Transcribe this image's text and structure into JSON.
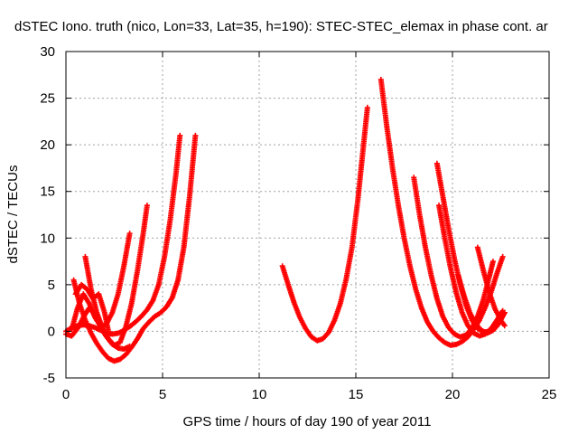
{
  "chart_data": {
    "type": "scatter",
    "title": "dSTEC Iono. truth (nico, Lon=33, Lat=35, h=190): STEC-STEC_elemax in phase cont. ar",
    "xlabel": "GPS time / hours of day 190 of year 2011",
    "ylabel": "dSTEC  / TECUs",
    "xlim": [
      0,
      25
    ],
    "ylim": [
      -5,
      30
    ],
    "xticks": [
      0,
      5,
      10,
      15,
      20,
      25
    ],
    "yticks": [
      -5,
      0,
      5,
      10,
      15,
      20,
      25,
      30
    ],
    "xtick_labels": [
      "0",
      "5",
      "10",
      "15",
      "20",
      "25"
    ],
    "ytick_labels": [
      "-5",
      "0",
      "5",
      "10",
      "15",
      "20",
      "25",
      "30"
    ],
    "grid": true,
    "marker": "plus",
    "color": "#ff0000",
    "series": [
      {
        "x": [
          0.0,
          0.3,
          0.6,
          0.9,
          1.2,
          1.5,
          1.8,
          2.1,
          2.4,
          2.7,
          3.0,
          3.3,
          3.6,
          3.9,
          4.2,
          4.5,
          4.8,
          5.1,
          5.4,
          5.7,
          5.9
        ],
        "y": [
          0.0,
          0.4,
          0.6,
          0.7,
          0.6,
          0.4,
          0.1,
          -0.2,
          -0.3,
          -0.2,
          0.1,
          0.5,
          1.0,
          1.6,
          2.3,
          3.3,
          5.0,
          8.0,
          12.0,
          17.0,
          21.0
        ]
      },
      {
        "x": [
          0.4,
          0.7,
          1.0,
          1.3,
          1.6,
          1.9,
          2.2,
          2.5,
          2.8,
          3.1,
          3.4,
          3.7,
          4.0,
          4.3,
          4.6,
          4.9,
          5.2,
          5.5,
          5.8,
          6.1,
          6.4,
          6.7
        ],
        "y": [
          5.5,
          3.0,
          1.2,
          -0.2,
          -1.3,
          -2.2,
          -2.9,
          -3.2,
          -3.0,
          -2.5,
          -1.7,
          -0.8,
          0.3,
          1.0,
          1.6,
          2.0,
          2.6,
          3.6,
          5.5,
          9.0,
          14.5,
          21.0
        ]
      },
      {
        "x": [
          1.0,
          1.3,
          1.6,
          1.9,
          2.2,
          2.5,
          2.8,
          3.1,
          3.4,
          3.7,
          4.0,
          4.2
        ],
        "y": [
          8.0,
          4.5,
          2.0,
          0.3,
          -0.8,
          -1.5,
          -1.2,
          0.5,
          3.0,
          6.5,
          10.5,
          13.5
        ]
      },
      {
        "x": [
          0.3,
          0.6,
          0.9,
          1.2,
          1.5,
          1.8,
          2.1,
          2.4,
          2.7,
          3.0,
          3.3
        ],
        "y": [
          0.2,
          2.5,
          4.0,
          3.0,
          1.5,
          0.5,
          0.8,
          2.0,
          4.0,
          7.0,
          10.5
        ]
      },
      {
        "x": [
          0.5,
          0.8,
          1.1,
          1.4,
          1.7,
          2.0,
          2.2
        ],
        "y": [
          4.0,
          5.0,
          4.5,
          3.5,
          4.0,
          2.0,
          0.0
        ]
      },
      {
        "x": [
          0.0,
          0.3,
          0.6,
          0.9,
          1.2,
          1.5,
          1.8,
          2.1,
          2.4,
          2.7,
          3.0,
          3.3
        ],
        "y": [
          -0.3,
          -0.5,
          0.3,
          1.5,
          2.5,
          1.8,
          0.4,
          -0.6,
          -1.4,
          -1.8,
          -1.9,
          -1.6
        ]
      },
      {
        "x": [
          11.2,
          11.5,
          11.8,
          12.1,
          12.4,
          12.7,
          13.0,
          13.3,
          13.6,
          13.9,
          14.2,
          14.5,
          14.8,
          15.1,
          15.4,
          15.6
        ],
        "y": [
          7.0,
          5.0,
          3.1,
          1.5,
          0.3,
          -0.6,
          -1.0,
          -0.8,
          -0.1,
          1.2,
          3.0,
          5.6,
          9.0,
          14.0,
          20.0,
          24.0
        ]
      },
      {
        "x": [
          16.3,
          16.6,
          16.9,
          17.2,
          17.5,
          17.8,
          18.1,
          18.4,
          18.7,
          19.0,
          19.3,
          19.6,
          19.9,
          20.2,
          20.5,
          20.8,
          21.1,
          21.4,
          21.7,
          22.0,
          22.3,
          22.6
        ],
        "y": [
          27.0,
          22.0,
          17.5,
          13.5,
          10.0,
          7.0,
          4.5,
          2.5,
          1.0,
          0.0,
          -0.7,
          -1.2,
          -1.5,
          -1.4,
          -1.1,
          -0.6,
          0.2,
          1.2,
          2.6,
          4.2,
          6.2,
          8.0
        ]
      },
      {
        "x": [
          18.0,
          18.3,
          18.6,
          18.9,
          19.2,
          19.5,
          19.8,
          20.1,
          20.4,
          20.7,
          21.0,
          21.3,
          21.6,
          21.9,
          22.1
        ],
        "y": [
          16.5,
          12.5,
          9.0,
          6.0,
          3.5,
          1.6,
          0.4,
          -0.3,
          -0.6,
          -0.4,
          0.3,
          1.6,
          3.4,
          5.8,
          7.5
        ]
      },
      {
        "x": [
          19.2,
          19.5,
          19.8,
          20.1,
          20.4,
          20.7,
          21.0,
          21.3,
          21.6,
          21.9,
          22.2,
          22.5,
          22.7
        ],
        "y": [
          18.0,
          14.5,
          11.0,
          7.8,
          5.0,
          2.8,
          1.2,
          0.3,
          -0.1,
          0.0,
          0.5,
          1.3,
          2.0
        ]
      },
      {
        "x": [
          19.3,
          19.6,
          19.9,
          20.2,
          20.5,
          20.8,
          21.1,
          21.4,
          21.7,
          22.0,
          22.3,
          22.6
        ],
        "y": [
          13.5,
          10.0,
          6.8,
          4.1,
          2.0,
          0.6,
          -0.2,
          -0.5,
          -0.3,
          0.3,
          1.2,
          2.2
        ]
      },
      {
        "x": [
          20.3,
          20.6,
          20.9,
          21.2,
          21.5,
          21.8,
          22.1,
          22.4,
          22.7
        ],
        "y": [
          6.0,
          3.8,
          2.0,
          0.8,
          0.1,
          -0.2,
          0.1,
          0.8,
          2.0
        ]
      },
      {
        "x": [
          21.3,
          21.6,
          21.9,
          22.2,
          22.5,
          22.7
        ],
        "y": [
          9.0,
          6.5,
          4.2,
          2.4,
          1.2,
          0.6
        ]
      }
    ]
  }
}
